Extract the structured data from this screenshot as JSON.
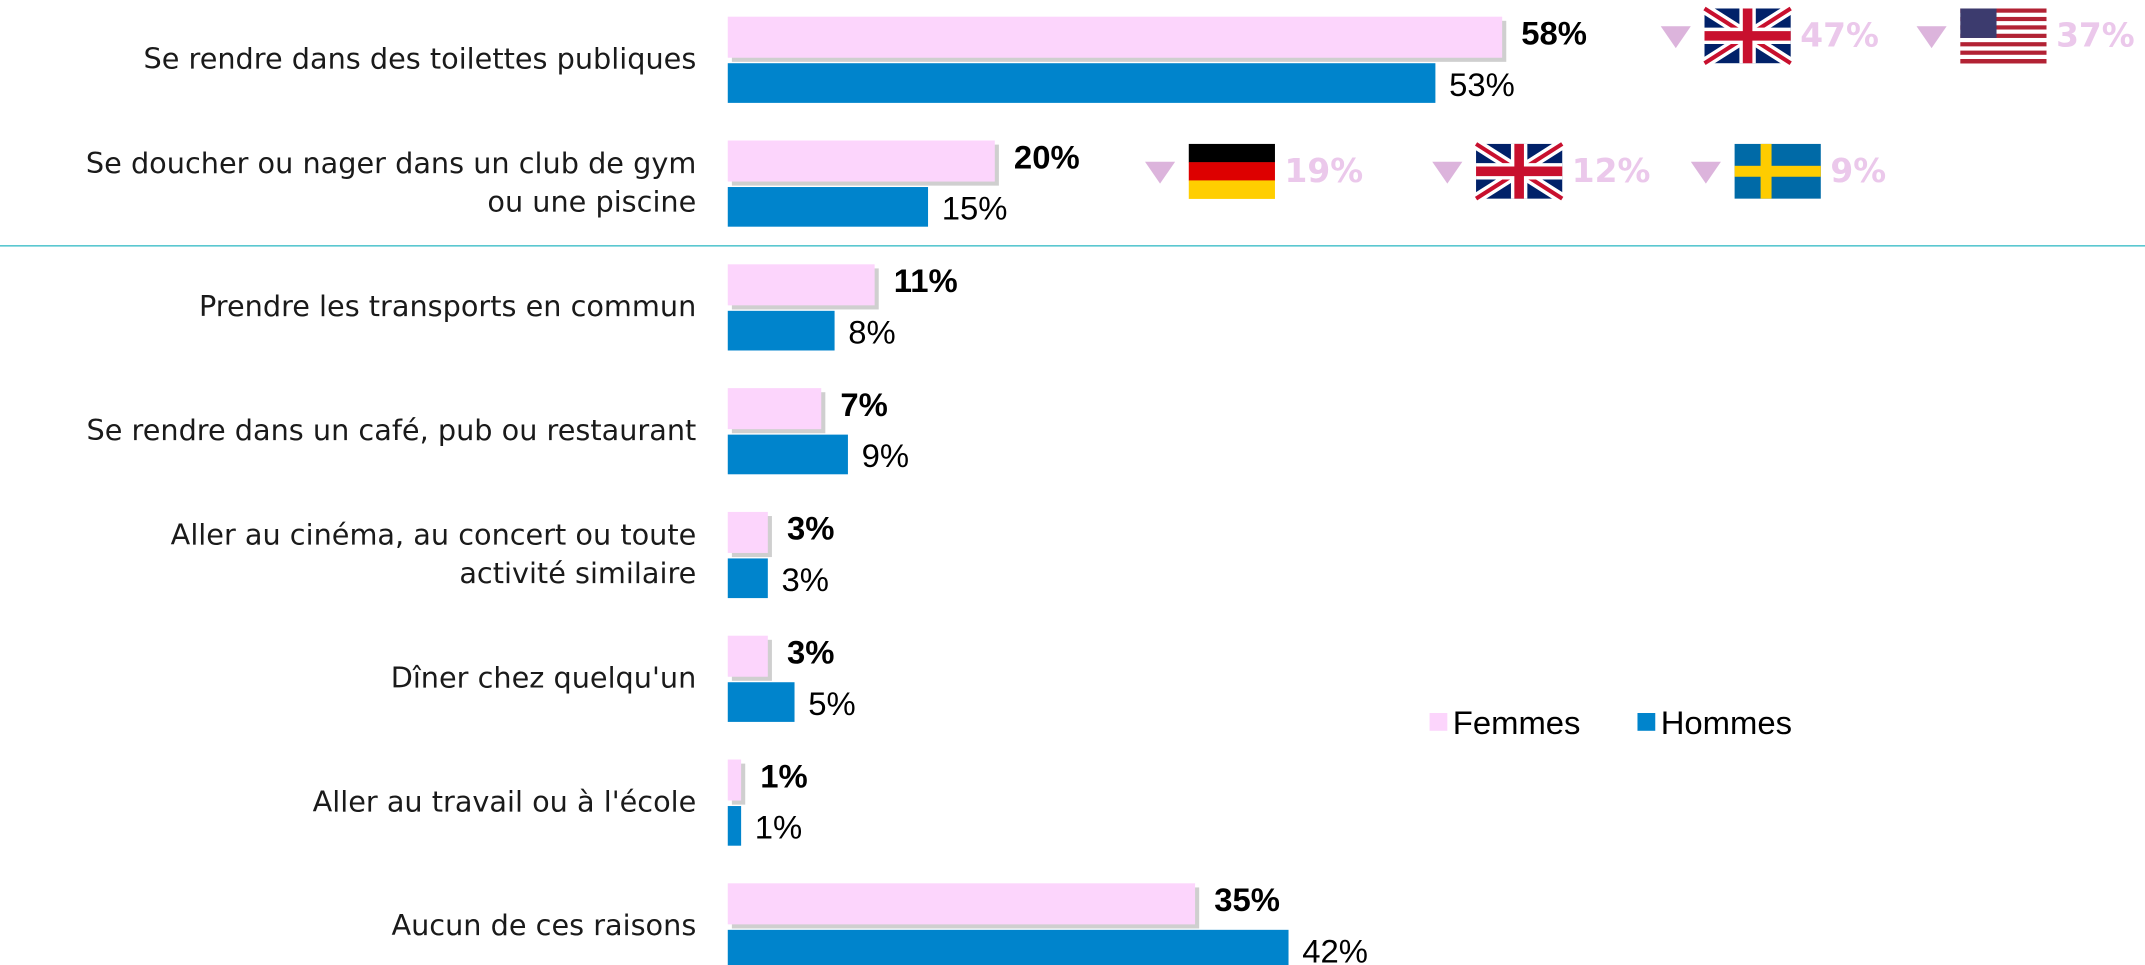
{
  "chart_data": {
    "type": "hbar",
    "categories": [
      "Se rendre dans des toilettes publiques",
      "Se doucher ou nager dans un club de gym\nou une piscine",
      "Prendre les transports en commun",
      "Se rendre dans un café, pub ou restaurant",
      "Aller au cinéma, au concert ou toute\nactivité similaire",
      "Dîner chez quelqu'un",
      "Aller au travail ou à l'école",
      "Aucun de ces raisons"
    ],
    "series": [
      {
        "name": "Femmes",
        "color": "#fcd5fc",
        "values": [
          58,
          20,
          11,
          7,
          3,
          3,
          1,
          35
        ],
        "value_labels": [
          "58%",
          "20%",
          "11%",
          "7%",
          "3%",
          "3%",
          "1%",
          "35%"
        ]
      },
      {
        "name": "Hommes",
        "color": "#0084cc",
        "values": [
          53,
          15,
          8,
          9,
          3,
          5,
          1,
          42
        ],
        "value_labels": [
          "53%",
          "15%",
          "8%",
          "9%",
          "3%",
          "5%",
          "1%",
          "42%"
        ]
      }
    ],
    "comparisons": [
      [
        {
          "value": 47,
          "label": "47%"
        },
        {
          "value": 37,
          "label": "37%"
        }
      ],
      [
        {
          "value": 19,
          "label": "19%"
        },
        {
          "value": 12,
          "label": "12%"
        },
        {
          "value": 9,
          "label": "9%"
        }
      ]
    ]
  }
}
